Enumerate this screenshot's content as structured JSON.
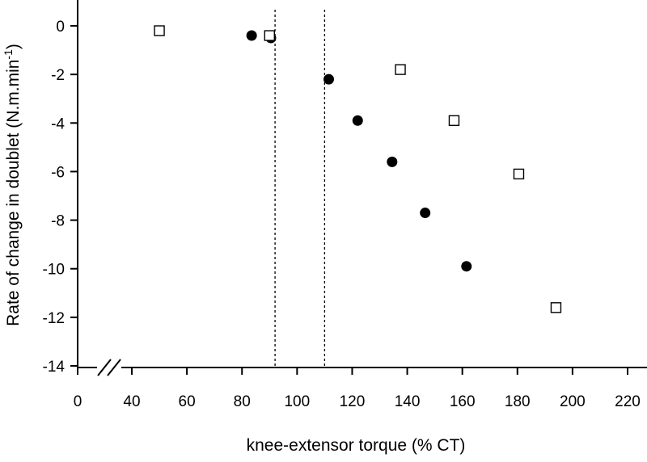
{
  "chart_data": {
    "type": "scatter",
    "xlabel": "knee-extensor torque (% CT)",
    "ylabel_main": "Rate of change in doublet (N.m.min",
    "ylabel_sup": "-1",
    "ylabel_close": ")",
    "x_ticks": [
      0,
      40,
      60,
      80,
      100,
      120,
      140,
      160,
      180,
      200,
      220
    ],
    "x_tick_labels": [
      "0",
      "40",
      "60",
      "80",
      "100",
      "120",
      "140",
      "160",
      "180",
      "200",
      "220"
    ],
    "y_ticks": [
      0,
      -2,
      -4,
      -6,
      -8,
      -10,
      -12,
      -14
    ],
    "y_tick_labels": [
      "0",
      "-2",
      "-4",
      "-6",
      "-8",
      "-10",
      "-12",
      "-14"
    ],
    "xlim": [
      0,
      220
    ],
    "x_axis_break": [
      0,
      40
    ],
    "ylim": [
      -14,
      1
    ],
    "grid": false,
    "reference_lines_x": [
      92,
      110
    ],
    "series": [
      {
        "marker": "filled-circle",
        "color": "#000000",
        "x": [
          83.5,
          90.5,
          111.5,
          122,
          134.5,
          146.5,
          161.5
        ],
        "y": [
          -0.4,
          -0.5,
          -2.2,
          -3.9,
          -5.6,
          -7.7,
          -9.9
        ]
      },
      {
        "marker": "open-square",
        "color": "#000000",
        "x": [
          50,
          90,
          137.5,
          157,
          180.5,
          194
        ],
        "y": [
          -0.2,
          -0.4,
          -1.8,
          -3.9,
          -6.1,
          -11.6
        ]
      }
    ]
  }
}
